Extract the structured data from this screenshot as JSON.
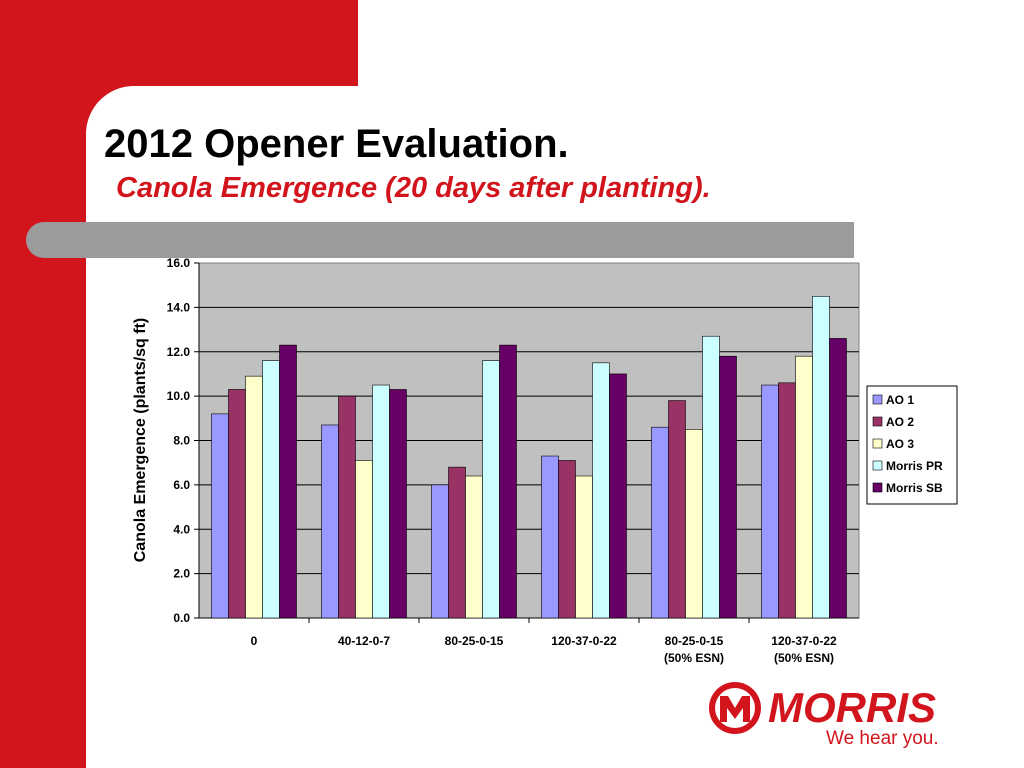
{
  "slide": {
    "title": "2012 Opener Evaluation.",
    "subtitle": "Canola Emergence (20 days after planting).",
    "logo_text": "MORRIS",
    "tagline": "We hear you."
  },
  "colors": {
    "brand_red": "#d2151d",
    "plot_bg": "#c0c0c0",
    "band_gray": "#9b9b9b"
  },
  "chart_data": {
    "type": "bar",
    "title": "",
    "xlabel": "",
    "ylabel": "Canola Emergence (plants/sq ft)",
    "ylim": [
      0,
      16
    ],
    "yticks": [
      "0.0",
      "2.0",
      "4.0",
      "6.0",
      "8.0",
      "10.0",
      "12.0",
      "14.0",
      "16.0"
    ],
    "grid": true,
    "legend_position": "right",
    "categories": [
      [
        "0"
      ],
      [
        "40-12-0-7"
      ],
      [
        "80-25-0-15"
      ],
      [
        "120-37-0-22"
      ],
      [
        "80-25-0-15",
        "(50% ESN)"
      ],
      [
        "120-37-0-22",
        "(50% ESN)"
      ]
    ],
    "series": [
      {
        "name": "AO 1",
        "color": "#9999ff",
        "values": [
          9.2,
          8.7,
          6.0,
          7.3,
          8.6,
          10.5
        ]
      },
      {
        "name": "AO 2",
        "color": "#993366",
        "values": [
          10.3,
          10.0,
          6.8,
          7.1,
          9.8,
          10.6
        ]
      },
      {
        "name": "AO 3",
        "color": "#ffffcc",
        "values": [
          10.9,
          7.1,
          6.4,
          6.4,
          8.5,
          11.8
        ]
      },
      {
        "name": "Morris PR",
        "color": "#ccffff",
        "values": [
          11.6,
          10.5,
          11.6,
          11.5,
          12.7,
          14.5
        ]
      },
      {
        "name": "Morris SB",
        "color": "#660066",
        "values": [
          12.3,
          10.3,
          12.3,
          11.0,
          11.8,
          12.6
        ]
      }
    ]
  }
}
